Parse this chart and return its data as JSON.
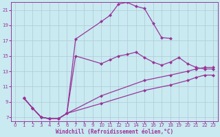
{
  "background_color": "#c8eaf0",
  "grid_color": "#b0c8d8",
  "line_color": "#993399",
  "xlabel": "Windchill (Refroidissement éolien,°C)",
  "xlim": [
    -0.5,
    23.5
  ],
  "ylim": [
    6.5,
    22.0
  ],
  "yticks": [
    7,
    9,
    11,
    13,
    15,
    17,
    19,
    21
  ],
  "xticks": [
    0,
    1,
    2,
    3,
    4,
    5,
    6,
    7,
    8,
    9,
    10,
    11,
    12,
    13,
    14,
    15,
    16,
    17,
    18,
    19,
    20,
    21,
    22,
    23
  ],
  "curve1_x": [
    1,
    2,
    3,
    4,
    5,
    6,
    7,
    10,
    11,
    12,
    13,
    14,
    15,
    16,
    17,
    18
  ],
  "curve1_y": [
    9.5,
    8.2,
    7.0,
    6.8,
    6.8,
    7.5,
    17.2,
    19.5,
    20.3,
    21.8,
    22.0,
    21.5,
    21.2,
    19.3,
    17.4,
    17.3
  ],
  "curve2_x": [
    1,
    2,
    3,
    4,
    5,
    6,
    7,
    10,
    11,
    12,
    13,
    14,
    15,
    16,
    17,
    18,
    19,
    20,
    21,
    22,
    23
  ],
  "curve2_y": [
    9.5,
    8.2,
    7.0,
    6.8,
    6.8,
    7.5,
    15.0,
    14.0,
    14.5,
    15.0,
    15.2,
    15.5,
    14.8,
    14.2,
    13.8,
    14.2,
    14.8,
    14.0,
    13.5,
    13.3,
    13.3
  ],
  "curve3_x": [
    1,
    2,
    3,
    4,
    5,
    6,
    10,
    15,
    18,
    20,
    21,
    22,
    23
  ],
  "curve3_y": [
    9.5,
    8.2,
    7.0,
    6.8,
    6.8,
    7.5,
    9.8,
    11.8,
    12.5,
    13.0,
    13.3,
    13.5,
    13.5
  ],
  "curve4_x": [
    1,
    2,
    3,
    4,
    5,
    6,
    10,
    15,
    18,
    20,
    21,
    22,
    23
  ],
  "curve4_y": [
    9.5,
    8.2,
    7.0,
    6.8,
    6.8,
    7.5,
    8.8,
    10.5,
    11.2,
    11.8,
    12.2,
    12.5,
    12.5
  ]
}
